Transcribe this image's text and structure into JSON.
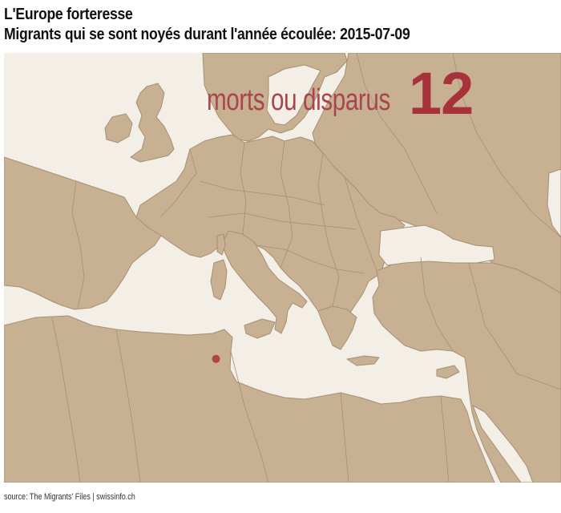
{
  "header": {
    "title_line1": "L'Europe forteresse",
    "title_line2": "Migrants qui se sont noyés durant l'année écoulée: 2015-07-09"
  },
  "stat": {
    "label": "morts ou disparus",
    "value": "12"
  },
  "map": {
    "land_color": "#c8b193",
    "sea_color": "#f3efe7",
    "border_color": "#a58f72",
    "marker_color": "#b0424b",
    "markers": [
      {
        "name": "incident",
        "lat": 35.5,
        "lon": 12.6
      }
    ]
  },
  "footer": {
    "source": "source: The Migrants' Files | swissinfo.ch"
  }
}
